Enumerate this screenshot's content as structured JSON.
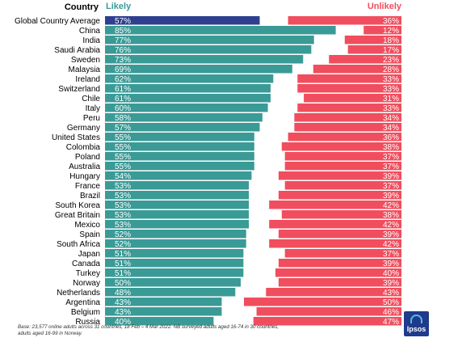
{
  "chart_data": {
    "type": "bar",
    "headers": {
      "country": "Country",
      "likely": "Likely",
      "unlikely": "Unlikely"
    },
    "colors": {
      "average_likely": "#2e3f8f",
      "likely": "#3a9a96",
      "unlikely": "#f04e5e",
      "likely_header": "#3a9a96",
      "unlikely_header": "#f04e5e"
    },
    "rows": [
      {
        "country": "Global Country Average",
        "likely": 57,
        "unlikely": 36
      },
      {
        "country": "China",
        "likely": 85,
        "unlikely": 12
      },
      {
        "country": "India",
        "likely": 77,
        "unlikely": 18
      },
      {
        "country": "Saudi Arabia",
        "likely": 76,
        "unlikely": 17
      },
      {
        "country": "Sweden",
        "likely": 73,
        "unlikely": 23
      },
      {
        "country": "Malaysia",
        "likely": 69,
        "unlikely": 28
      },
      {
        "country": "Ireland",
        "likely": 62,
        "unlikely": 33
      },
      {
        "country": "Switzerland",
        "likely": 61,
        "unlikely": 33
      },
      {
        "country": "Chile",
        "likely": 61,
        "unlikely": 31
      },
      {
        "country": "Italy",
        "likely": 60,
        "unlikely": 33
      },
      {
        "country": "Peru",
        "likely": 58,
        "unlikely": 34
      },
      {
        "country": "Germany",
        "likely": 57,
        "unlikely": 34
      },
      {
        "country": "United States",
        "likely": 55,
        "unlikely": 36
      },
      {
        "country": "Colombia",
        "likely": 55,
        "unlikely": 38
      },
      {
        "country": "Poland",
        "likely": 55,
        "unlikely": 37
      },
      {
        "country": "Australia",
        "likely": 55,
        "unlikely": 37
      },
      {
        "country": "Hungary",
        "likely": 54,
        "unlikely": 39
      },
      {
        "country": "France",
        "likely": 53,
        "unlikely": 37
      },
      {
        "country": "Brazil",
        "likely": 53,
        "unlikely": 39
      },
      {
        "country": "South Korea",
        "likely": 53,
        "unlikely": 42
      },
      {
        "country": "Great Britain",
        "likely": 53,
        "unlikely": 38
      },
      {
        "country": "Mexico",
        "likely": 53,
        "unlikely": 42
      },
      {
        "country": "Spain",
        "likely": 52,
        "unlikely": 39
      },
      {
        "country": "South Africa",
        "likely": 52,
        "unlikely": 42
      },
      {
        "country": "Japan",
        "likely": 51,
        "unlikely": 37
      },
      {
        "country": "Canada",
        "likely": 51,
        "unlikely": 39
      },
      {
        "country": "Turkey",
        "likely": 51,
        "unlikely": 40
      },
      {
        "country": "Norway",
        "likely": 50,
        "unlikely": 39
      },
      {
        "country": "Netherlands",
        "likely": 48,
        "unlikely": 43
      },
      {
        "country": "Argentina",
        "likely": 43,
        "unlikely": 50
      },
      {
        "country": "Belgium",
        "likely": 43,
        "unlikely": 46
      },
      {
        "country": "Russia",
        "likely": 40,
        "unlikely": 47
      }
    ]
  },
  "footnote": "Base: 23,577 online adults across 31 countries, 18 Feb – 4 Mar 2022. NB surveyed adults aged 16-74 in 30 countries, adults aged 16-99 in Norway.",
  "logo": {
    "text": "Ipsos"
  }
}
